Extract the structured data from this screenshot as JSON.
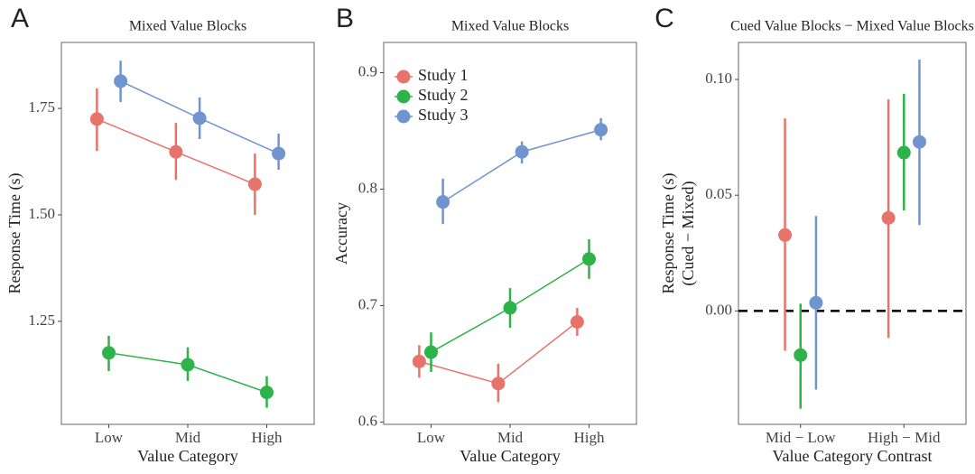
{
  "chart_data": [
    {
      "type": "pointrange",
      "panel_label": "A",
      "title": "Mixed Value Blocks",
      "xlabel": "Value Category",
      "ylabel": [
        "Response Time (s)"
      ],
      "categories": [
        "Low",
        "Mid",
        "High"
      ],
      "connect": true,
      "series": [
        {
          "color": "#e8736b",
          "values": [
            1.725,
            1.648,
            1.572
          ],
          "lower": [
            1.65,
            1.582,
            1.5
          ],
          "upper": [
            1.797,
            1.716,
            1.644
          ]
        },
        {
          "color": "#2db34a",
          "values": [
            1.176,
            1.148,
            1.083
          ],
          "lower": [
            1.133,
            1.11,
            1.047
          ],
          "upper": [
            1.216,
            1.189,
            1.121
          ]
        },
        {
          "color": "#6f94cf",
          "values": [
            1.814,
            1.727,
            1.644
          ],
          "lower": [
            1.765,
            1.678,
            1.606
          ],
          "upper": [
            1.862,
            1.776,
            1.691
          ]
        }
      ],
      "ylim": [
        1.008,
        1.905
      ],
      "yticks": [
        1.25,
        {
          "value": 1.5,
          "label": "1.50"
        },
        1.75
      ]
    },
    {
      "type": "pointrange",
      "panel_label": "B",
      "title": "Mixed Value Blocks",
      "xlabel": "Value Category",
      "ylabel": [
        "Accuracy"
      ],
      "categories": [
        "Low",
        "Mid",
        "High"
      ],
      "connect": true,
      "legend": "top-left",
      "series": [
        {
          "name": "Study 1",
          "color": "#e8736b",
          "values": [
            0.652,
            0.633,
            0.686
          ],
          "lower": [
            0.638,
            0.617,
            0.674
          ],
          "upper": [
            0.666,
            0.65,
            0.698
          ]
        },
        {
          "name": "Study 2",
          "color": "#2db34a",
          "values": [
            0.66,
            0.698,
            0.74
          ],
          "lower": [
            0.643,
            0.681,
            0.723
          ],
          "upper": [
            0.677,
            0.715,
            0.757
          ]
        },
        {
          "name": "Study 3",
          "color": "#6f94cf",
          "values": [
            0.789,
            0.832,
            0.851
          ],
          "lower": [
            0.77,
            0.822,
            0.842
          ],
          "upper": [
            0.809,
            0.841,
            0.861
          ]
        }
      ],
      "ylim": [
        0.598,
        0.926
      ],
      "yticks": [
        0.6,
        0.7,
        0.8,
        0.9
      ]
    },
    {
      "type": "pointrange",
      "panel_label": "C",
      "title": "Cued Value Blocks − Mixed Value Blocks",
      "xlabel": "Value Category Contrast",
      "ylabel": [
        "Response Time (s)",
        "(Cued − Mixed)"
      ],
      "categories": [
        "Mid − Low",
        "High − Mid"
      ],
      "connect": false,
      "reference_line": 0,
      "series": [
        {
          "color": "#e8736b",
          "values": [
            0.0328,
            0.0402
          ],
          "lower": [
            -0.0172,
            -0.0117
          ],
          "upper": [
            0.0832,
            0.0914
          ]
        },
        {
          "color": "#2db34a",
          "values": [
            -0.0191,
            0.0684
          ],
          "lower": [
            -0.0422,
            0.0434
          ],
          "upper": [
            0.0031,
            0.0938
          ]
        },
        {
          "color": "#6f94cf",
          "values": [
            0.0035,
            0.073
          ],
          "lower": [
            -0.034,
            0.0371
          ],
          "upper": [
            0.041,
            0.1086
          ]
        }
      ],
      "ylim": [
        -0.049,
        0.116
      ],
      "yticks": [
        {
          "value": 0,
          "label": "0.00"
        },
        {
          "value": 0.05,
          "label": "0.05"
        },
        {
          "value": 0.1,
          "label": "0.10"
        }
      ]
    }
  ]
}
